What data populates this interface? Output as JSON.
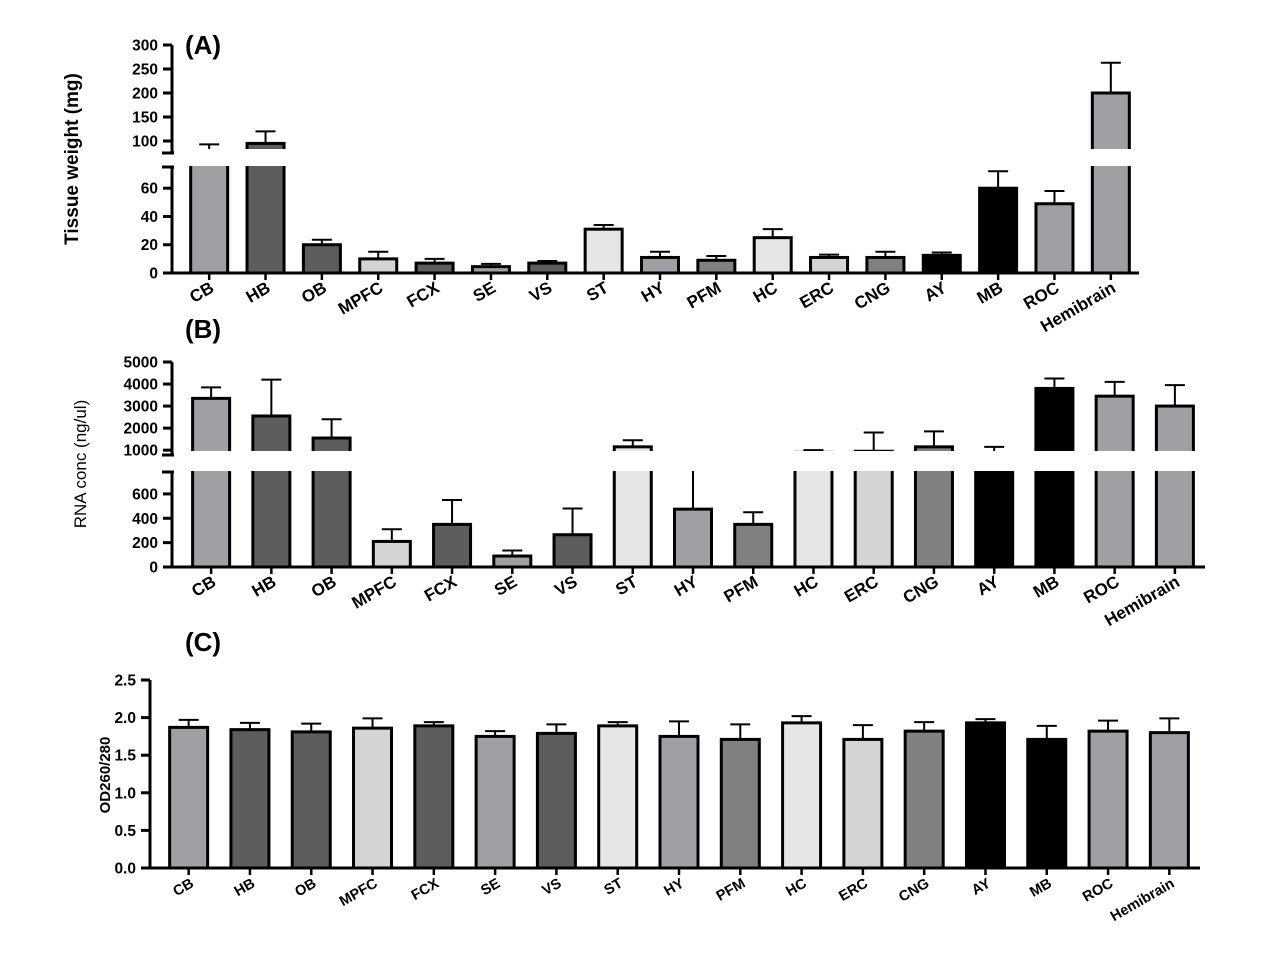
{
  "categories": [
    "CB",
    "HB",
    "OB",
    "MPFC",
    "FCX",
    "SE",
    "VS",
    "ST",
    "HY",
    "PFM",
    "HC",
    "ERC",
    "CNG",
    "AY",
    "MB",
    "ROC",
    "Hemibrain"
  ],
  "colors": [
    "#a0a0a4",
    "#5d5d5d",
    "#5d5d5d",
    "#d4d4d4",
    "#5d5d5d",
    "#a0a0a4",
    "#5d5d5d",
    "#e6e6e6",
    "#a0a0a4",
    "#808080",
    "#e6e6e6",
    "#d4d4d4",
    "#808080",
    "#000000",
    "#000000",
    "#a0a0a4",
    "#a0a0a4"
  ],
  "chart_data": [
    {
      "type": "bar",
      "panel": "(A)",
      "ylabel": "Tissue weight (mg)",
      "categories": [
        "CB",
        "HB",
        "OB",
        "MPFC",
        "FCX",
        "SE",
        "VS",
        "ST",
        "HY",
        "PFM",
        "HC",
        "ERC",
        "CNG",
        "AY",
        "MB",
        "ROC",
        "Hemibrain"
      ],
      "values": [
        78,
        95,
        20,
        10,
        7,
        4.5,
        7,
        31,
        11,
        9,
        25,
        11,
        11,
        12.5,
        60,
        49,
        200
      ],
      "error": [
        15,
        25,
        3.5,
        5,
        3,
        2,
        1.5,
        3,
        4,
        3,
        6,
        2,
        4,
        2,
        12,
        9,
        63
      ],
      "axis_break": true,
      "ylim_lower": [
        0,
        75
      ],
      "ylim_upper": [
        75,
        300
      ],
      "yticks_lower": [
        0,
        20,
        40,
        60
      ],
      "yticks_upper": [
        100,
        150,
        200,
        250,
        300
      ]
    },
    {
      "type": "bar",
      "panel": "(B)",
      "ylabel": "RNA conc (ng/ul)",
      "categories": [
        "CB",
        "HB",
        "OB",
        "MPFC",
        "FCX",
        "SE",
        "VS",
        "ST",
        "HY",
        "PFM",
        "HC",
        "ERC",
        "CNG",
        "AY",
        "MB",
        "ROC",
        "Hemibrain"
      ],
      "values": [
        3350,
        2550,
        1550,
        210,
        350,
        90,
        265,
        1150,
        475,
        350,
        900,
        950,
        1150,
        800,
        3800,
        3450,
        3000
      ],
      "error": [
        500,
        1650,
        850,
        100,
        200,
        45,
        215,
        300,
        420,
        100,
        100,
        850,
        700,
        350,
        450,
        650,
        950
      ],
      "axis_break": true,
      "ylim_lower": [
        0,
        780
      ],
      "ylim_upper": [
        780,
        5000
      ],
      "yticks_lower": [
        0,
        200,
        400,
        600
      ],
      "yticks_upper": [
        1000,
        2000,
        3000,
        4000,
        5000
      ]
    },
    {
      "type": "bar",
      "panel": "(C)",
      "ylabel": "OD260/280",
      "categories": [
        "CB",
        "HB",
        "OB",
        "MPFC",
        "FCX",
        "SE",
        "VS",
        "ST",
        "HY",
        "PFM",
        "HC",
        "ERC",
        "CNG",
        "AY",
        "MB",
        "ROC",
        "Hemibrain"
      ],
      "values": [
        1.87,
        1.84,
        1.81,
        1.86,
        1.89,
        1.75,
        1.79,
        1.89,
        1.75,
        1.71,
        1.93,
        1.71,
        1.82,
        1.93,
        1.71,
        1.82,
        1.8
      ],
      "error": [
        0.1,
        0.09,
        0.11,
        0.13,
        0.05,
        0.07,
        0.12,
        0.05,
        0.2,
        0.2,
        0.09,
        0.19,
        0.12,
        0.05,
        0.18,
        0.14,
        0.19
      ],
      "axis_break": false,
      "ylim": [
        0,
        2.5
      ],
      "yticks": [
        0.0,
        0.5,
        1.0,
        1.5,
        2.0,
        2.5
      ]
    }
  ]
}
